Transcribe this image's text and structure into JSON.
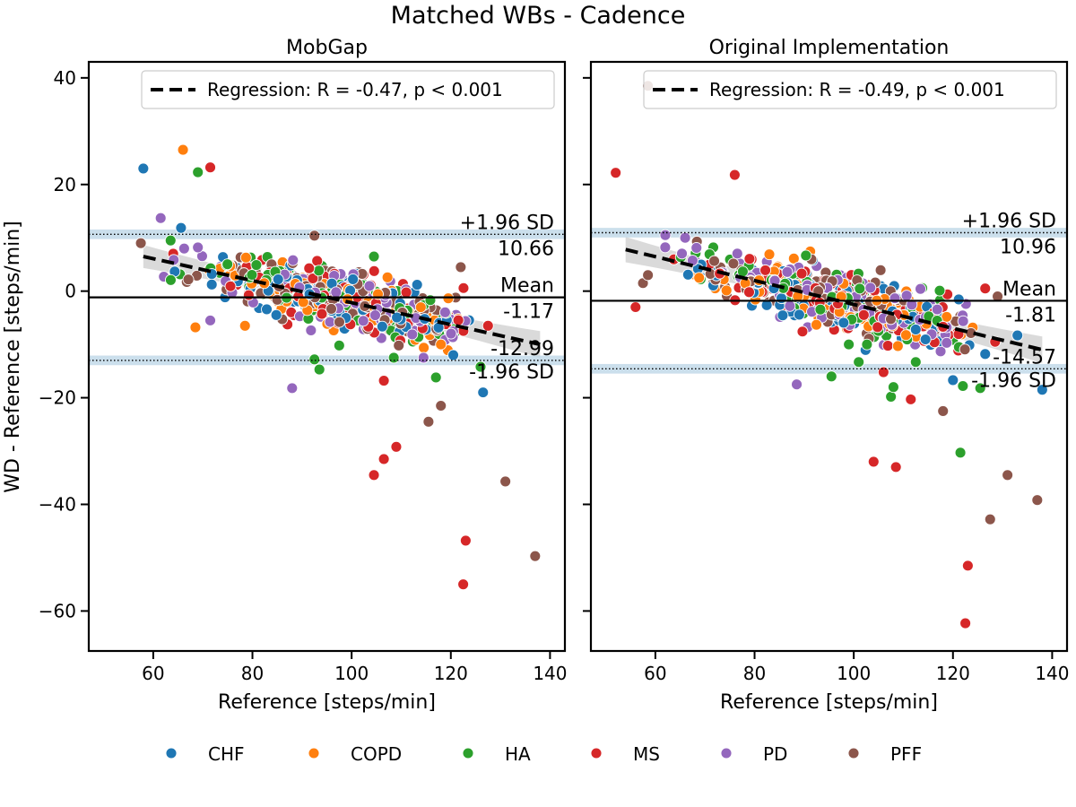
{
  "figure": {
    "suptitle": "Matched WBs - Cadence"
  },
  "legend": {
    "entries": [
      {
        "label": "CHF",
        "color": "#1f77b4"
      },
      {
        "label": "COPD",
        "color": "#ff7f0e"
      },
      {
        "label": "HA",
        "color": "#2ca02c"
      },
      {
        "label": "MS",
        "color": "#d62728"
      },
      {
        "label": "PD",
        "color": "#9467bd"
      },
      {
        "label": "PFF",
        "color": "#8c564b"
      }
    ]
  },
  "chart_data": [
    {
      "type": "scatter",
      "title": "MobGap",
      "xlabel": "Reference [steps/min]",
      "ylabel": "WD - Reference [steps/min]",
      "xlim": [
        47,
        143
      ],
      "ylim": [
        -67.5,
        43
      ],
      "xticks": [
        60,
        80,
        100,
        120,
        140
      ],
      "yticks": [
        40,
        20,
        0,
        -20,
        -40,
        -60
      ],
      "grid": false,
      "legend_position": "top-right",
      "regression": {
        "label": "Regression: R = -0.47, p < 0.001",
        "x": [
          58,
          138
        ],
        "y": [
          6.5,
          -10.0
        ]
      },
      "reference_lines": {
        "upper": {
          "label": "+1.96 SD",
          "value": 10.66,
          "value_text": "10.66"
        },
        "mean": {
          "label": "Mean",
          "value": -1.17,
          "value_text": "-1.17"
        },
        "lower": {
          "label": "-1.96 SD",
          "value": -12.99,
          "value_text": "-12.99"
        }
      },
      "outliers": [
        {
          "group": "CHF",
          "x": 58.0,
          "y": 23.0
        },
        {
          "group": "COPD",
          "x": 66.0,
          "y": 26.5
        },
        {
          "group": "HA",
          "x": 69.0,
          "y": 22.3
        },
        {
          "group": "MS",
          "x": 71.5,
          "y": 23.2
        },
        {
          "group": "PD",
          "x": 61.5,
          "y": 13.7
        },
        {
          "group": "PFF",
          "x": 92.5,
          "y": 10.4
        },
        {
          "group": "HA",
          "x": 63.5,
          "y": 9.5
        },
        {
          "group": "PD",
          "x": 69.0,
          "y": 8.2
        },
        {
          "group": "PD",
          "x": 88.0,
          "y": -18.2
        },
        {
          "group": "MS",
          "x": 104.5,
          "y": -34.5
        },
        {
          "group": "MS",
          "x": 106.5,
          "y": -31.5
        },
        {
          "group": "MS",
          "x": 109.0,
          "y": -29.2
        },
        {
          "group": "MS",
          "x": 106.5,
          "y": -16.8
        },
        {
          "group": "PFF",
          "x": 115.5,
          "y": -24.5
        },
        {
          "group": "PFF",
          "x": 118.0,
          "y": -21.5
        },
        {
          "group": "MS",
          "x": 123.0,
          "y": -46.8
        },
        {
          "group": "MS",
          "x": 122.5,
          "y": -55.0
        },
        {
          "group": "PFF",
          "x": 131.0,
          "y": -35.7
        },
        {
          "group": "PFF",
          "x": 137.0,
          "y": -49.7
        },
        {
          "group": "CHF",
          "x": 126.5,
          "y": -19.0
        },
        {
          "group": "HA",
          "x": 126.0,
          "y": -14.2
        },
        {
          "group": "HA",
          "x": 117.0,
          "y": -16.2
        },
        {
          "group": "HA",
          "x": 108.5,
          "y": -12.5
        },
        {
          "group": "HA",
          "x": 93.5,
          "y": -14.7
        },
        {
          "group": "HA",
          "x": 92.5,
          "y": -12.8
        },
        {
          "group": "PD",
          "x": 114.5,
          "y": -12.5
        },
        {
          "group": "PFF",
          "x": 122.0,
          "y": 4.5
        },
        {
          "group": "PFF",
          "x": 57.5,
          "y": 9.0
        },
        {
          "group": "HA",
          "x": 97.5,
          "y": -10.2
        },
        {
          "group": "CHF",
          "x": 120.5,
          "y": -12.0
        },
        {
          "group": "COPD",
          "x": 118.0,
          "y": -10.0
        },
        {
          "group": "PFF",
          "x": 109.5,
          "y": -10.2
        },
        {
          "group": "COPD",
          "x": 68.5,
          "y": -6.8
        },
        {
          "group": "COPD",
          "x": 78.5,
          "y": -6.5
        },
        {
          "group": "PD",
          "x": 71.5,
          "y": -5.5
        },
        {
          "group": "MS",
          "x": 127.5,
          "y": -6.5
        },
        {
          "group": "HA",
          "x": 104.5,
          "y": 6.5
        }
      ]
    },
    {
      "type": "scatter",
      "title": "Original Implementation",
      "xlabel": "Reference [steps/min]",
      "ylabel": "",
      "xlim": [
        47,
        143
      ],
      "ylim": [
        -67.5,
        43
      ],
      "xticks": [
        60,
        80,
        100,
        120,
        140
      ],
      "yticks": [
        40,
        20,
        0,
        -20,
        -40,
        -60
      ],
      "grid": false,
      "legend_position": "top-right",
      "regression": {
        "label": "Regression: R = -0.49, p < 0.001",
        "x": [
          54,
          138
        ],
        "y": [
          7.8,
          -11.0
        ]
      },
      "reference_lines": {
        "upper": {
          "label": "+1.96 SD",
          "value": 10.96,
          "value_text": "10.96"
        },
        "mean": {
          "label": "Mean",
          "value": -1.81,
          "value_text": "-1.81"
        },
        "lower": {
          "label": "-1.96 SD",
          "value": -14.57,
          "value_text": "-14.57"
        }
      },
      "outliers": [
        {
          "group": "PFF",
          "x": 58.5,
          "y": 38.5
        },
        {
          "group": "MS",
          "x": 52.0,
          "y": 22.2
        },
        {
          "group": "MS",
          "x": 76.0,
          "y": 21.8
        },
        {
          "group": "PD",
          "x": 62.0,
          "y": 10.5
        },
        {
          "group": "PD",
          "x": 66.0,
          "y": 10.0
        },
        {
          "group": "PD",
          "x": 88.5,
          "y": -17.5
        },
        {
          "group": "MS",
          "x": 104.0,
          "y": -32.0
        },
        {
          "group": "MS",
          "x": 108.5,
          "y": -33.0
        },
        {
          "group": "MS",
          "x": 111.5,
          "y": -20.3
        },
        {
          "group": "HA",
          "x": 107.5,
          "y": -19.8
        },
        {
          "group": "HA",
          "x": 108.0,
          "y": -18.0
        },
        {
          "group": "HA",
          "x": 121.5,
          "y": -30.3
        },
        {
          "group": "PFF",
          "x": 118.0,
          "y": -22.5
        },
        {
          "group": "PFF",
          "x": 131.0,
          "y": -34.5
        },
        {
          "group": "PFF",
          "x": 127.5,
          "y": -42.8
        },
        {
          "group": "PFF",
          "x": 137.0,
          "y": -39.2
        },
        {
          "group": "MS",
          "x": 123.0,
          "y": -51.5
        },
        {
          "group": "MS",
          "x": 122.5,
          "y": -62.3
        },
        {
          "group": "CHF",
          "x": 120.0,
          "y": -16.7
        },
        {
          "group": "HA",
          "x": 122.0,
          "y": -17.8
        },
        {
          "group": "HA",
          "x": 125.5,
          "y": -18.2
        },
        {
          "group": "CHF",
          "x": 138.0,
          "y": -18.5
        },
        {
          "group": "HA",
          "x": 95.5,
          "y": -16.0
        },
        {
          "group": "HA",
          "x": 101.0,
          "y": -13.3
        },
        {
          "group": "MS",
          "x": 106.0,
          "y": -15.2
        },
        {
          "group": "HA",
          "x": 112.5,
          "y": -13.3
        },
        {
          "group": "CHF",
          "x": 133.0,
          "y": -8.3
        },
        {
          "group": "CHF",
          "x": 126.5,
          "y": -11.8
        },
        {
          "group": "MS",
          "x": 56.0,
          "y": -3.0
        },
        {
          "group": "PFF",
          "x": 57.5,
          "y": 1.5
        },
        {
          "group": "PFF",
          "x": 58.5,
          "y": 3.0
        },
        {
          "group": "MS",
          "x": 126.5,
          "y": 0.5
        },
        {
          "group": "PFF",
          "x": 129.0,
          "y": -1.0
        },
        {
          "group": "HA",
          "x": 99.0,
          "y": -10.0
        },
        {
          "group": "MS",
          "x": 128.5,
          "y": -9.5
        }
      ]
    }
  ]
}
